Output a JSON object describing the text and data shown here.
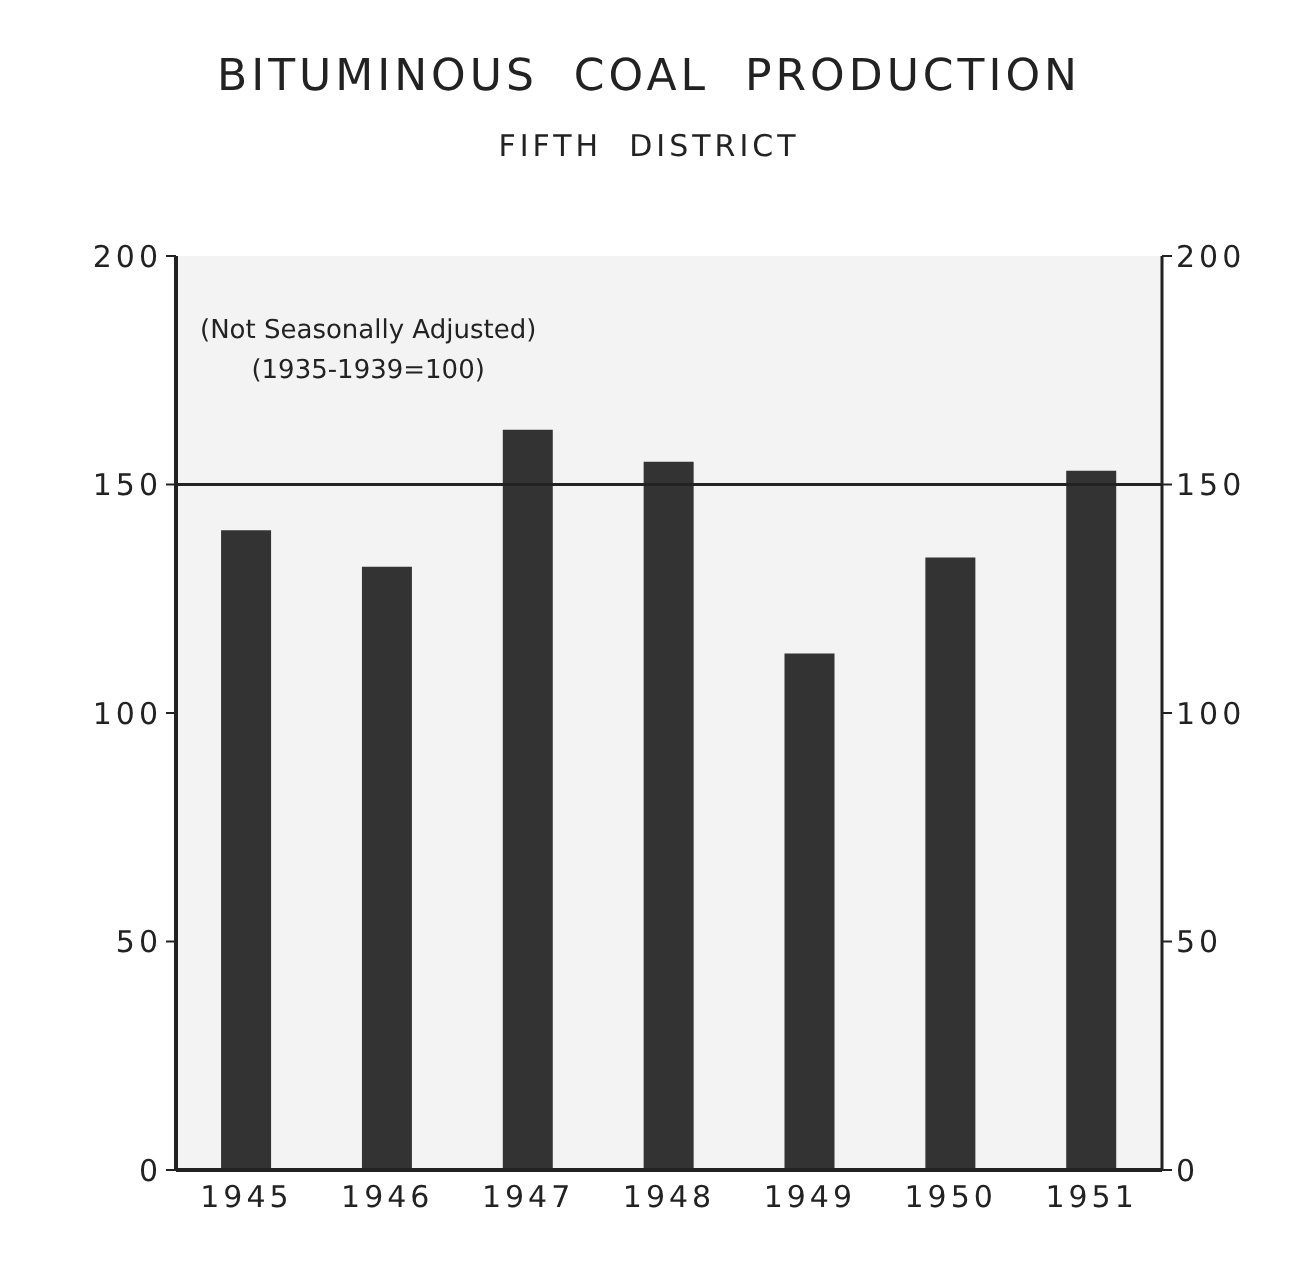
{
  "chart_data": {
    "type": "bar",
    "title": "BITUMINOUS  COAL  PRODUCTION",
    "subtitle": "FIFTH  DISTRICT",
    "categories": [
      "1945",
      "1946",
      "1947",
      "1948",
      "1949",
      "1950",
      "1951"
    ],
    "values": [
      140,
      132,
      162,
      155,
      113,
      134,
      153
    ],
    "color": "#333333",
    "ylim": [
      0,
      200
    ],
    "yticks": [
      0,
      50,
      100,
      150,
      200
    ],
    "y2lim": [
      0,
      200
    ],
    "y2ticks": [
      0,
      50,
      100,
      150,
      200
    ],
    "ref_lines": [
      {
        "axis": "y",
        "value": 150,
        "label": null,
        "color": "#222222"
      }
    ],
    "annotations": [
      "(Not Seasonally Adjusted)",
      "(1935-1939=100)"
    ]
  }
}
